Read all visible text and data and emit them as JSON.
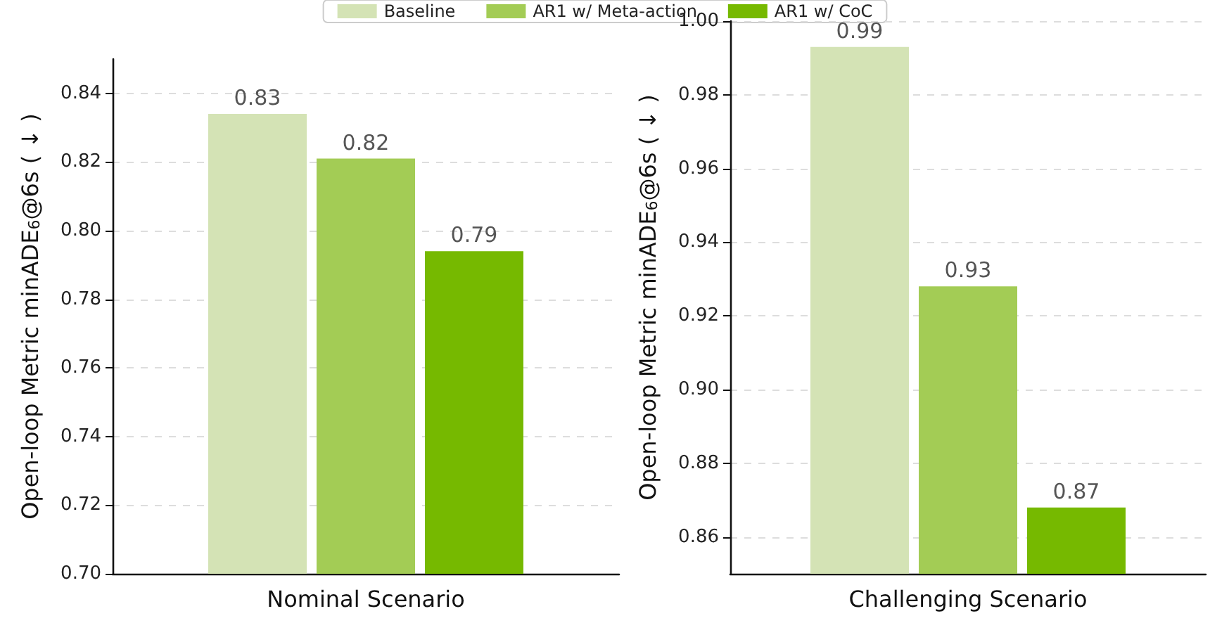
{
  "chart_data": [
    {
      "type": "bar",
      "categories": [
        "Nominal Scenario"
      ],
      "ylabel": "Open-loop Metric minADE$_{6}$@6s ( ↓ )",
      "legend": "top",
      "grid": "y",
      "series": [
        {
          "name": "Baseline",
          "color": "#d4e3b5",
          "values": [
            0.834
          ],
          "value_labels": [
            "0.83"
          ]
        },
        {
          "name": "AR1 w/ Meta-action",
          "color": "#a3cc55",
          "values": [
            0.821
          ],
          "value_labels": [
            "0.82"
          ]
        },
        {
          "name": "AR1 w/ CoC",
          "color": "#76b900",
          "values": [
            0.794
          ],
          "value_labels": [
            "0.79"
          ]
        }
      ],
      "ylim": [
        0.7,
        0.85
      ],
      "yticks": [
        {
          "value": 0.7,
          "label": "0.70"
        },
        {
          "value": 0.72,
          "label": "0.72"
        },
        {
          "value": 0.74,
          "label": "0.74"
        },
        {
          "value": 0.76,
          "label": "0.76"
        },
        {
          "value": 0.78,
          "label": "0.78"
        },
        {
          "value": 0.8,
          "label": "0.80"
        },
        {
          "value": 0.82,
          "label": "0.82"
        },
        {
          "value": 0.84,
          "label": "0.84"
        }
      ]
    },
    {
      "type": "bar",
      "categories": [
        "Challenging Scenario"
      ],
      "ylabel": "Open-loop Metric minADE$_{6}$@6s ( ↓ )",
      "grid": "y",
      "series": [
        {
          "color": "#d4e3b5",
          "values": [
            0.993
          ],
          "value_labels": [
            "0.99"
          ]
        },
        {
          "color": "#a3cc55",
          "values": [
            0.928
          ],
          "value_labels": [
            "0.93"
          ]
        },
        {
          "color": "#76b900",
          "values": [
            0.868
          ],
          "value_labels": [
            "0.87"
          ]
        }
      ],
      "ylim": [
        0.85,
        1.0
      ],
      "yticks": [
        {
          "value": 0.86,
          "label": "0.86"
        },
        {
          "value": 0.88,
          "label": "0.88"
        },
        {
          "value": 0.9,
          "label": "0.90"
        },
        {
          "value": 0.92,
          "label": "0.92"
        },
        {
          "value": 0.94,
          "label": "0.94"
        },
        {
          "value": 0.96,
          "label": "0.96"
        },
        {
          "value": 0.98,
          "label": "0.98"
        },
        {
          "value": 1.0,
          "label": "1.00"
        }
      ]
    }
  ]
}
